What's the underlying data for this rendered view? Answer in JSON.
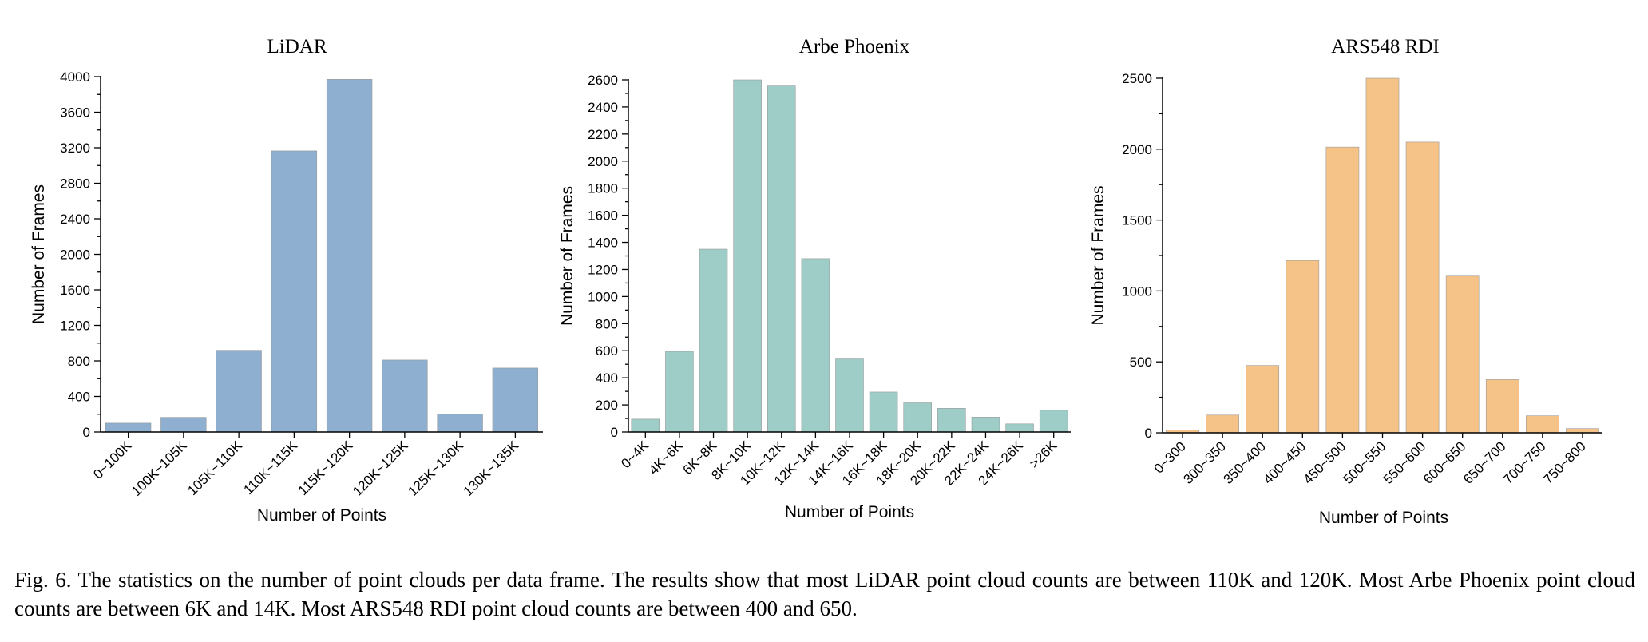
{
  "chart_data": [
    {
      "type": "bar",
      "title": "LiDAR",
      "xlabel": "Number of Points",
      "ylabel": "Number of Frames",
      "ylim": [
        0,
        4000
      ],
      "yticks": [
        0,
        400,
        800,
        1200,
        1600,
        2000,
        2400,
        2800,
        3200,
        3600,
        4000
      ],
      "minor_ticks": true,
      "categories": [
        "0~100K",
        "100K~105K",
        "105K~110K",
        "110K~115K",
        "115K~120K",
        "120K~125K",
        "125K~130K",
        "130K~135K"
      ],
      "values": [
        100,
        165,
        920,
        3165,
        3970,
        810,
        200,
        720
      ],
      "color": "#8eafcf"
    },
    {
      "type": "bar",
      "title": "Arbe Phoenix",
      "xlabel": "Number of Points",
      "ylabel": "Number of Frames",
      "ylim": [
        0,
        2600
      ],
      "yticks": [
        0,
        200,
        400,
        600,
        800,
        1000,
        1200,
        1400,
        1600,
        1800,
        2000,
        2200,
        2400,
        2600
      ],
      "minor_ticks": true,
      "categories": [
        "0~4K",
        "4K~6K",
        "6K~8K",
        "8K~10K",
        "10K~12K",
        "12K~14K",
        "14K~16K",
        "16K~18K",
        "18K~20K",
        "20K~22K",
        "22K~24K",
        "24K~26K",
        ">26K"
      ],
      "values": [
        95,
        595,
        1350,
        2600,
        2555,
        1280,
        545,
        295,
        215,
        175,
        110,
        60,
        160
      ],
      "color": "#9ecdc8"
    },
    {
      "type": "bar",
      "title": "ARS548 RDI",
      "xlabel": "Number of Points",
      "ylabel": "Number of Frames",
      "ylim": [
        0,
        2500
      ],
      "yticks": [
        0,
        500,
        1000,
        1500,
        2000,
        2500
      ],
      "minor_ticks": true,
      "categories": [
        "0~300",
        "300~350",
        "350~400",
        "400~450",
        "450~500",
        "500~550",
        "550~600",
        "600~650",
        "650~700",
        "700~750",
        "750~800"
      ],
      "values": [
        20,
        125,
        475,
        1215,
        2015,
        2500,
        2050,
        1105,
        375,
        120,
        30
      ],
      "color": "#f5c388"
    }
  ],
  "caption": "Fig. 6.  The statistics on the number of point clouds per data frame. The results show that most LiDAR point cloud counts are between 110K and 120K. Most Arbe Phoenix point cloud counts are between 6K and 14K. Most ARS548 RDI point cloud counts are between 400 and 650."
}
